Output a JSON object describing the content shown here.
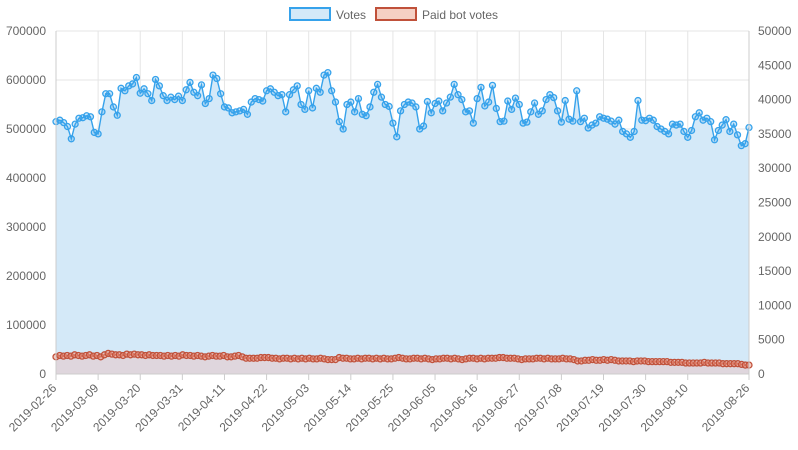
{
  "chart_data": {
    "type": "line",
    "title": "",
    "legend_position": "top",
    "grid": true,
    "y_left": {
      "min": 0,
      "max": 700000,
      "ticks": [
        0,
        100000,
        200000,
        300000,
        400000,
        500000,
        600000,
        700000
      ]
    },
    "y_right": {
      "min": 0,
      "max": 50000,
      "ticks": [
        0,
        5000,
        10000,
        15000,
        20000,
        25000,
        30000,
        35000,
        40000,
        45000,
        50000
      ]
    },
    "x_tick_labels": [
      "2019-02-26",
      "2019-03-09",
      "2019-03-20",
      "2019-03-31",
      "2019-04-11",
      "2019-04-22",
      "2019-05-03",
      "2019-05-14",
      "2019-05-25",
      "2019-06-05",
      "2019-06-16",
      "2019-06-27",
      "2019-07-08",
      "2019-07-19",
      "2019-07-30",
      "2019-08-10",
      "2019-08-26"
    ],
    "x_start": "2019-02-26",
    "x_end": "2019-08-26",
    "series": [
      {
        "name": "Votes",
        "axis": "left",
        "color": "#36a2eb",
        "fill": "#d4e9f8",
        "values": [
          515000,
          518000,
          513000,
          505000,
          480000,
          510000,
          522000,
          523000,
          527000,
          525000,
          493000,
          490000,
          535000,
          572000,
          572000,
          545000,
          528000,
          583000,
          578000,
          588000,
          592000,
          605000,
          573000,
          582000,
          572000,
          558000,
          601000,
          588000,
          568000,
          558000,
          565000,
          560000,
          567000,
          558000,
          580000,
          595000,
          575000,
          568000,
          590000,
          552000,
          562000,
          610000,
          603000,
          572000,
          545000,
          543000,
          533000,
          535000,
          537000,
          540000,
          530000,
          555000,
          562000,
          560000,
          557000,
          578000,
          582000,
          575000,
          568000,
          570000,
          535000,
          570000,
          580000,
          588000,
          550000,
          540000,
          578000,
          543000,
          583000,
          575000,
          610000,
          615000,
          578000,
          555000,
          515000,
          500000,
          550000,
          555000,
          535000,
          562000,
          530000,
          527000,
          545000,
          575000,
          591000,
          565000,
          550000,
          546000,
          512000,
          484000,
          537000,
          550000,
          555000,
          553000,
          545000,
          500000,
          506000,
          556000,
          533000,
          552000,
          557000,
          537000,
          553000,
          565000,
          591000,
          570000,
          560000,
          535000,
          537000,
          512000,
          562000,
          585000,
          547000,
          555000,
          589000,
          542000,
          515000,
          516000,
          557000,
          540000,
          563000,
          550000,
          512000,
          514000,
          535000,
          553000,
          530000,
          537000,
          560000,
          570000,
          564000,
          537000,
          514000,
          558000,
          520000,
          516000,
          578000,
          515000,
          522000,
          502000,
          508000,
          512000,
          525000,
          522000,
          520000,
          516000,
          510000,
          518000,
          495000,
          490000,
          483000,
          495000,
          558000,
          518000,
          517000,
          522000,
          518000,
          505000,
          500000,
          495000,
          490000,
          510000,
          508000,
          510000,
          495000,
          483000,
          497000,
          525000,
          533000,
          518000,
          522000,
          515000,
          478000,
          497000,
          508000,
          519000,
          495000,
          510000,
          488000,
          466000,
          470000,
          503000
        ]
      },
      {
        "name": "Paid bot votes",
        "axis": "right",
        "color": "#c0513a",
        "fill": "rgba(255,160,140,0.25)",
        "values": [
          2500,
          2700,
          2600,
          2700,
          2600,
          2800,
          2700,
          2600,
          2700,
          2800,
          2600,
          2700,
          2500,
          2800,
          3000,
          2900,
          2800,
          2800,
          2700,
          2900,
          2800,
          2900,
          2800,
          2800,
          2700,
          2800,
          2700,
          2700,
          2700,
          2600,
          2700,
          2600,
          2700,
          2600,
          2800,
          2700,
          2700,
          2600,
          2700,
          2600,
          2500,
          2600,
          2700,
          2600,
          2600,
          2700,
          2500,
          2500,
          2600,
          2700,
          2500,
          2300,
          2300,
          2300,
          2300,
          2400,
          2400,
          2400,
          2300,
          2300,
          2200,
          2300,
          2300,
          2200,
          2300,
          2200,
          2300,
          2200,
          2300,
          2200,
          2200,
          2300,
          2200,
          2100,
          2100,
          2100,
          2400,
          2300,
          2300,
          2200,
          2200,
          2300,
          2200,
          2300,
          2300,
          2200,
          2300,
          2200,
          2300,
          2200,
          2200,
          2300,
          2400,
          2300,
          2200,
          2200,
          2300,
          2300,
          2200,
          2300,
          2200,
          2100,
          2200,
          2200,
          2300,
          2300,
          2200,
          2300,
          2200,
          2100,
          2200,
          2300,
          2300,
          2200,
          2300,
          2200,
          2300,
          2300,
          2300,
          2400,
          2400,
          2300,
          2300,
          2300,
          2200,
          2100,
          2200,
          2200,
          2200,
          2300,
          2300,
          2200,
          2300,
          2200,
          2200,
          2200,
          2300,
          2200,
          2200,
          2100,
          1900,
          1900,
          2000,
          2000,
          2100,
          2000,
          2000,
          2100,
          2000,
          2100,
          2000,
          1900,
          1900,
          1900,
          1900,
          1800,
          1900,
          1900,
          1900,
          1800,
          1800,
          1800,
          1800,
          1800,
          1800,
          1700,
          1700,
          1700,
          1700,
          1600,
          1600,
          1600,
          1600,
          1600,
          1700,
          1600,
          1600,
          1600,
          1600,
          1500,
          1500,
          1500,
          1500,
          1500,
          1400,
          1300,
          1300
        ]
      }
    ]
  }
}
